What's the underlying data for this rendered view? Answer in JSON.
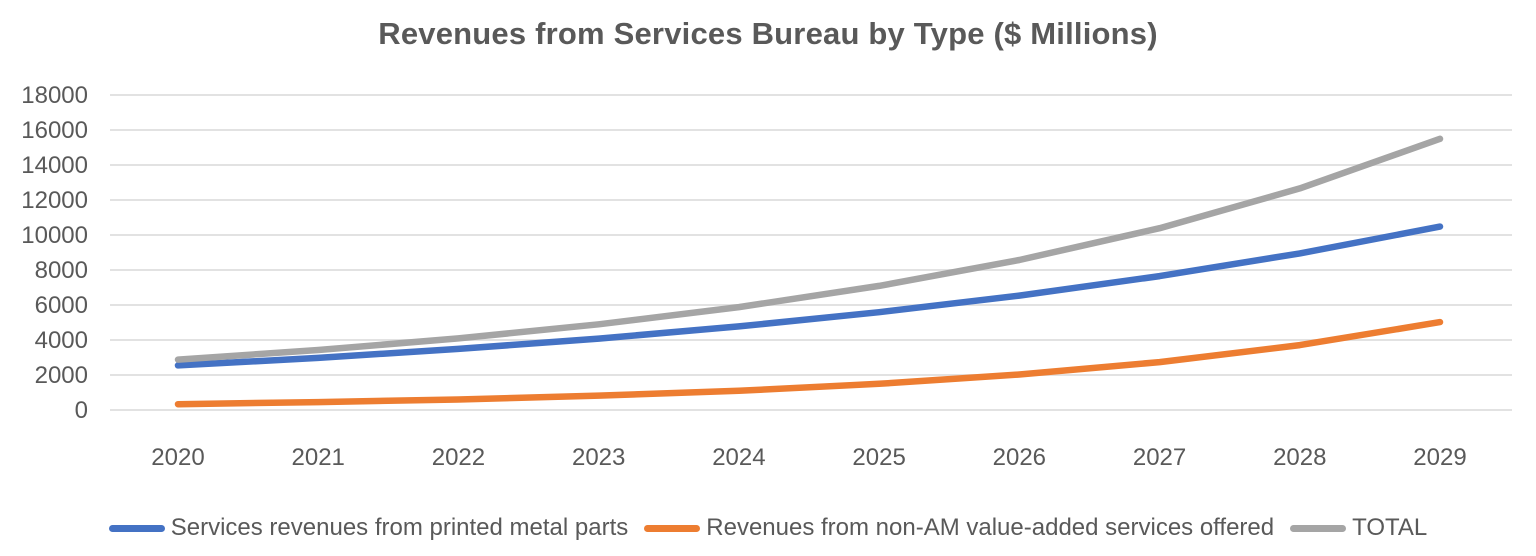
{
  "chart_data": {
    "type": "line",
    "title": "Revenues from Services Bureau by Type ($ Millions)",
    "categories": [
      "2020",
      "2021",
      "2022",
      "2023",
      "2024",
      "2025",
      "2026",
      "2027",
      "2028",
      "2029"
    ],
    "series": [
      {
        "name": "Services revenues from printed metal parts",
        "color": "#4472C4",
        "values": [
          2550,
          2980,
          3490,
          4080,
          4780,
          5590,
          6540,
          7650,
          8950,
          10480
        ]
      },
      {
        "name": "Revenues from non-AM value-added services offered",
        "color": "#ED7D31",
        "values": [
          330,
          450,
          600,
          820,
          1100,
          1500,
          2030,
          2740,
          3710,
          5020
        ]
      },
      {
        "name": "TOTAL",
        "color": "#A5A5A5",
        "values": [
          2880,
          3430,
          4090,
          4900,
          5880,
          7090,
          8570,
          10390,
          12660,
          15500
        ]
      }
    ],
    "xlabel": "",
    "ylabel": "",
    "ylim": [
      0,
      18000
    ],
    "ytick_step": 2000,
    "yticks": [
      0,
      2000,
      4000,
      6000,
      8000,
      10000,
      12000,
      14000,
      16000,
      18000
    ],
    "grid": true,
    "legend_position": "bottom",
    "text_color": "#595959",
    "gridline_color": "#e2e2e2",
    "background_color": "#ffffff"
  }
}
